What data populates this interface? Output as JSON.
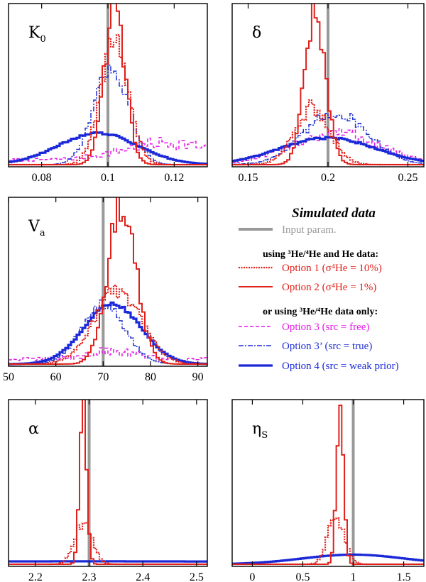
{
  "legend": {
    "title": "Simulated data",
    "input_param": "Input param.",
    "heading_1": "using ³He/⁴He and He data:",
    "heading_2": "or using ³He/⁴He data only:",
    "entries": [
      {
        "key": "opt1",
        "label": "Option 1 (σ⁴He = 10%)",
        "color": "#e0201a",
        "dash": "2,1.5",
        "width": 2.2
      },
      {
        "key": "opt2",
        "label": "Option 2 (σ⁴He = 1%)",
        "color": "#e0201a",
        "dash": "",
        "width": 2
      },
      {
        "key": "opt3",
        "label": "Option 3 (src = free)",
        "color": "#e41ce4",
        "dash": "5,3",
        "width": 1.5
      },
      {
        "key": "opt3p",
        "label": "Option 3’ (src = true)",
        "color": "#2030d0",
        "dash": "7,2,2,2",
        "width": 1.5
      },
      {
        "key": "opt4",
        "label": "Option 4 (src = weak prior)",
        "color": "#1a28d8",
        "dash": "",
        "width": 3.2
      }
    ],
    "input_color": "#999999"
  },
  "chart_data": [
    {
      "panel": "K0",
      "label": "K",
      "subscript": "0",
      "xlim": [
        0.07,
        0.13
      ],
      "ticks": [
        0.08,
        0.1,
        0.12
      ],
      "tick_labels": [
        "0.08",
        "0.1",
        "0.12"
      ],
      "input": 0.1,
      "series": {
        "opt1": {
          "center": 0.102,
          "width": 0.0042,
          "peak": 0.8,
          "base": 0.0,
          "noise": 0.1
        },
        "opt2": {
          "center": 0.102,
          "width": 0.0032,
          "peak": 0.98,
          "base": 0.0,
          "noise": 0.14
        },
        "opt3": {
          "center": 0.118,
          "width": 0.013,
          "peak": 0.11,
          "base": 0.03,
          "noise": 0.3
        },
        "opt3p": {
          "center": 0.101,
          "width": 0.0052,
          "peak": 0.62,
          "base": 0.0,
          "noise": 0.08
        },
        "opt4": {
          "center": 0.097,
          "width": 0.012,
          "peak": 0.2,
          "base": 0.0,
          "noise": 0.04
        }
      }
    },
    {
      "panel": "delta",
      "label": "δ",
      "subscript": "",
      "xlim": [
        0.14,
        0.26
      ],
      "ticks": [
        0.15,
        0.2,
        0.25
      ],
      "tick_labels": [
        "0.15",
        "0.2",
        "0.25"
      ],
      "input": 0.2,
      "series": {
        "opt1": {
          "center": 0.19,
          "width": 0.011,
          "peak": 0.36,
          "base": 0.0,
          "noise": 0.15
        },
        "opt2": {
          "center": 0.192,
          "width": 0.0065,
          "peak": 0.98,
          "base": 0.0,
          "noise": 0.12
        },
        "opt3": {
          "center": 0.205,
          "width": 0.028,
          "peak": 0.2,
          "base": 0.0,
          "noise": 0.25
        },
        "opt3p": {
          "center": 0.205,
          "width": 0.02,
          "peak": 0.33,
          "base": 0.0,
          "noise": 0.12
        },
        "opt4": {
          "center": 0.2,
          "width": 0.03,
          "peak": 0.17,
          "base": 0.0,
          "noise": 0.04
        }
      }
    },
    {
      "panel": "Va",
      "label": "V",
      "subscript": "a",
      "xlim": [
        50,
        92
      ],
      "ticks": [
        50,
        60,
        70,
        80,
        90
      ],
      "tick_labels": [
        "50",
        "60",
        "70",
        "80",
        "90"
      ],
      "input": 70,
      "series": {
        "opt1": {
          "center": 73,
          "width": 5.0,
          "peak": 0.45,
          "base": 0.0,
          "noise": 0.12
        },
        "opt2": {
          "center": 74,
          "width": 3.0,
          "peak": 0.97,
          "base": 0.0,
          "noise": 0.14
        },
        "opt3": {
          "center": 72,
          "width": 5.0,
          "peak": 0.05,
          "base": 0.03,
          "noise": 0.35
        },
        "opt3p": {
          "center": 70,
          "width": 4.5,
          "peak": 0.37,
          "base": 0.0,
          "noise": 0.1
        },
        "opt4": {
          "center": 72,
          "width": 6.0,
          "peak": 0.37,
          "base": 0.0,
          "noise": 0.03
        }
      }
    },
    {
      "panel": "alpha",
      "label": "α",
      "subscript": "",
      "xlim": [
        2.15,
        2.52
      ],
      "ticks": [
        2.2,
        2.3,
        2.4,
        2.5
      ],
      "tick_labels": [
        "2.2",
        "2.3",
        "2.4",
        "2.5"
      ],
      "input": 2.3,
      "series": {
        "opt1": {
          "center": 2.29,
          "width": 0.016,
          "peak": 0.27,
          "base": 0.0,
          "noise": 0.15
        },
        "opt2": {
          "center": 2.289,
          "width": 0.0065,
          "peak": 0.98,
          "base": 0.0,
          "noise": 0.08
        },
        "opt4": {
          "center": 2.3,
          "width": 0.6,
          "peak": 0.012,
          "base": 0.006,
          "noise": 0.0
        }
      }
    },
    {
      "panel": "etaS",
      "label": "η",
      "subscript": "S",
      "xlim": [
        -0.2,
        1.7
      ],
      "ticks": [
        0,
        0.5,
        1,
        1.5
      ],
      "tick_labels": [
        "0",
        "0.5",
        "1",
        "1.5"
      ],
      "input": 1.0,
      "series": {
        "opt1": {
          "center": 0.83,
          "width": 0.08,
          "peak": 0.3,
          "base": 0.0,
          "noise": 0.15
        },
        "opt2": {
          "center": 0.87,
          "width": 0.035,
          "peak": 0.98,
          "base": 0.0,
          "noise": 0.06
        },
        "opt4": {
          "center": 1.0,
          "width": 0.5,
          "peak": 0.06,
          "base": 0.0,
          "noise": 0.0
        }
      }
    }
  ]
}
